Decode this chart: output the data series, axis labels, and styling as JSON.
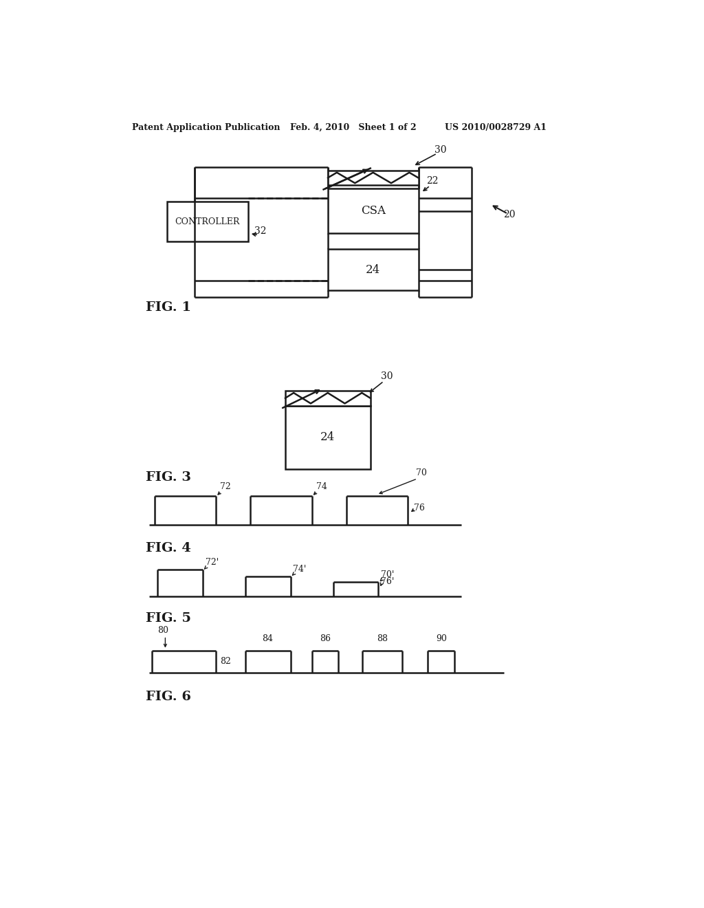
{
  "bg_color": "#ffffff",
  "lc": "#1a1a1a",
  "lw": 1.8,
  "header_left": "Patent Application Publication",
  "header_mid": "Feb. 4, 2010   Sheet 1 of 2",
  "header_right": "US 2010/0028729 A1",
  "fig1_label": "FIG. 1",
  "fig3_label": "FIG. 3",
  "fig4_label": "FIG. 4",
  "fig5_label": "FIG. 5",
  "fig6_label": "FIG. 6"
}
